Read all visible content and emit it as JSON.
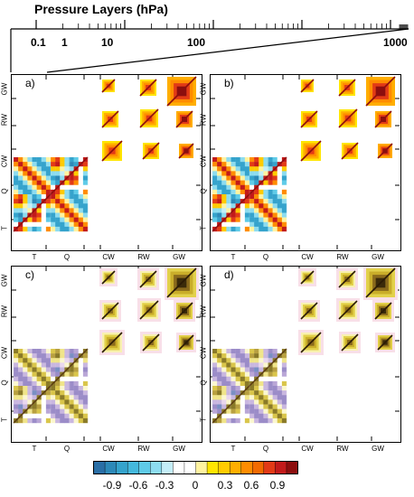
{
  "header": {
    "title": "Pressure Layers (hPa)",
    "ticks": [
      "0.1",
      "1",
      "10",
      "100",
      "1000"
    ]
  },
  "panels": [
    {
      "label": "a)",
      "style": "full"
    },
    {
      "label": "b)",
      "style": "full"
    },
    {
      "label": "c)",
      "style": "pastel"
    },
    {
      "label": "d)",
      "style": "pastel"
    }
  ],
  "axes": {
    "x_labels": [
      "T",
      "Q",
      "CW",
      "RW",
      "GW"
    ],
    "y_labels": [
      "GW",
      "RW",
      "CW",
      "Q",
      "T"
    ]
  },
  "colorbar": {
    "tick_labels": [
      "-0.9",
      "-0.6",
      "-0.3",
      "0",
      "0.3",
      "0.6",
      "0.9"
    ],
    "colors": [
      "#2a6fa6",
      "#2d89b8",
      "#35a3cc",
      "#44b8dc",
      "#5fcbe8",
      "#8ddcf0",
      "#c4eef8",
      "#ffffff",
      "#ffffff",
      "#fff3a0",
      "#ffe500",
      "#ffcb00",
      "#ffae00",
      "#ff8c00",
      "#f26a00",
      "#e23a16",
      "#c21a1a",
      "#8c0e0e"
    ]
  }
}
